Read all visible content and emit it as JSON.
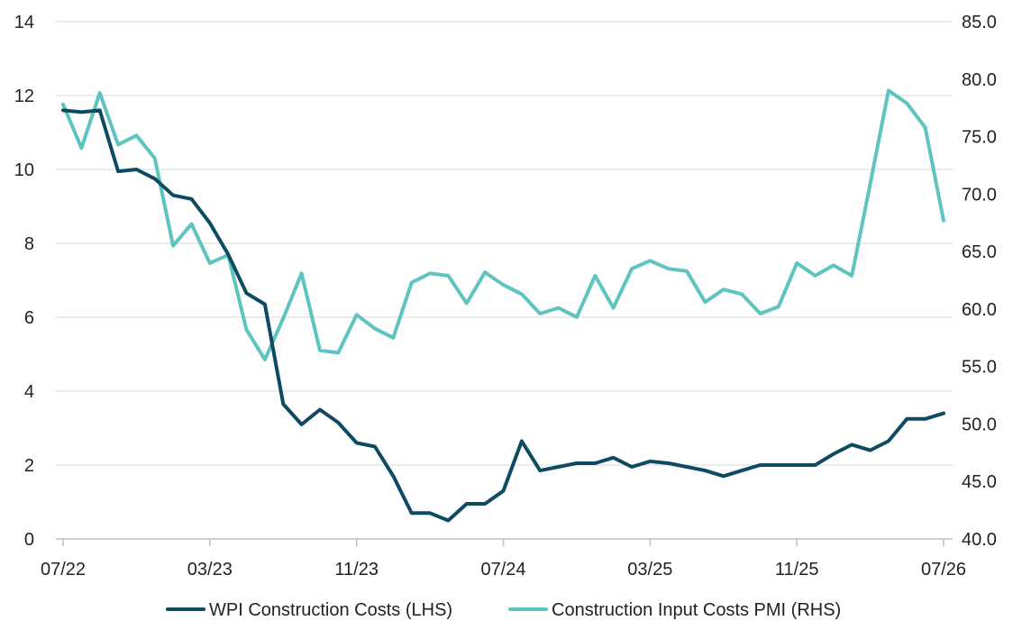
{
  "chart_data": {
    "type": "line",
    "title": "",
    "xlabel": "",
    "ylabel": "",
    "x_tick_labels": [
      "07/22",
      "03/23",
      "11/23",
      "07/24",
      "03/25",
      "11/25",
      "07/26"
    ],
    "y_left": {
      "ylim": [
        0,
        14
      ],
      "ticks": [
        0,
        2,
        4,
        6,
        8,
        10,
        12,
        14
      ],
      "tick_labels": [
        "0",
        "2",
        "4",
        "6",
        "8",
        "10",
        "12",
        "14"
      ]
    },
    "y_right": {
      "ylim": [
        40,
        85
      ],
      "ticks": [
        40,
        45,
        50,
        55,
        60,
        65,
        70,
        75,
        80,
        85
      ],
      "tick_labels": [
        "40.0",
        "45.0",
        "50.0",
        "55.0",
        "60.0",
        "65.0",
        "70.0",
        "75.0",
        "80.0",
        "85.0"
      ]
    },
    "grid": "horizontal",
    "legend_position": "bottom",
    "x": [
      "07/22",
      "08/22",
      "09/22",
      "10/22",
      "11/22",
      "12/22",
      "01/23",
      "02/23",
      "03/23",
      "04/23",
      "05/23",
      "06/23",
      "07/23",
      "08/23",
      "09/23",
      "10/23",
      "11/23",
      "12/23",
      "01/24",
      "02/24",
      "03/24",
      "04/24",
      "05/24",
      "06/24",
      "07/24",
      "08/24",
      "09/24",
      "10/24",
      "11/24",
      "12/24",
      "01/25",
      "02/25",
      "03/25",
      "04/25",
      "05/25",
      "06/25",
      "07/25",
      "08/25",
      "09/25",
      "10/25",
      "11/25",
      "12/25",
      "01/26",
      "02/26",
      "03/26",
      "04/26",
      "05/26",
      "06/26",
      "07/26"
    ],
    "series": [
      {
        "name": "WPI Construction Costs (LHS)",
        "axis": "left",
        "color": "#0f4a63",
        "values": [
          11.6,
          11.55,
          11.6,
          9.95,
          10.0,
          9.75,
          9.3,
          9.2,
          8.55,
          7.7,
          6.65,
          6.35,
          3.65,
          3.1,
          3.5,
          3.15,
          2.6,
          2.5,
          1.7,
          0.7,
          0.7,
          0.5,
          0.95,
          0.95,
          1.3,
          2.65,
          1.85,
          1.95,
          2.05,
          2.05,
          2.2,
          1.95,
          2.1,
          2.05,
          1.95,
          1.85,
          1.7,
          1.85,
          2.0,
          2.0,
          2.0,
          2.0,
          2.3,
          2.55,
          2.4,
          2.65,
          3.25,
          3.25,
          3.4
        ]
      },
      {
        "name": "Construction Input Costs PMI (RHS)",
        "axis": "right",
        "color": "#5ec4c0",
        "values": [
          77.8,
          74.0,
          78.8,
          74.3,
          75.1,
          73.1,
          65.5,
          67.4,
          64.0,
          64.7,
          58.2,
          55.6,
          59.2,
          63.1,
          56.4,
          56.2,
          59.5,
          58.3,
          57.5,
          62.3,
          63.1,
          62.9,
          60.5,
          63.2,
          62.1,
          61.3,
          59.6,
          60.1,
          59.3,
          62.9,
          60.1,
          63.5,
          64.2,
          63.5,
          63.3,
          60.6,
          61.7,
          61.3,
          59.6,
          60.2,
          64.0,
          62.9,
          63.8,
          62.9,
          70.9,
          79.0,
          77.9,
          75.8,
          67.7
        ]
      }
    ]
  }
}
